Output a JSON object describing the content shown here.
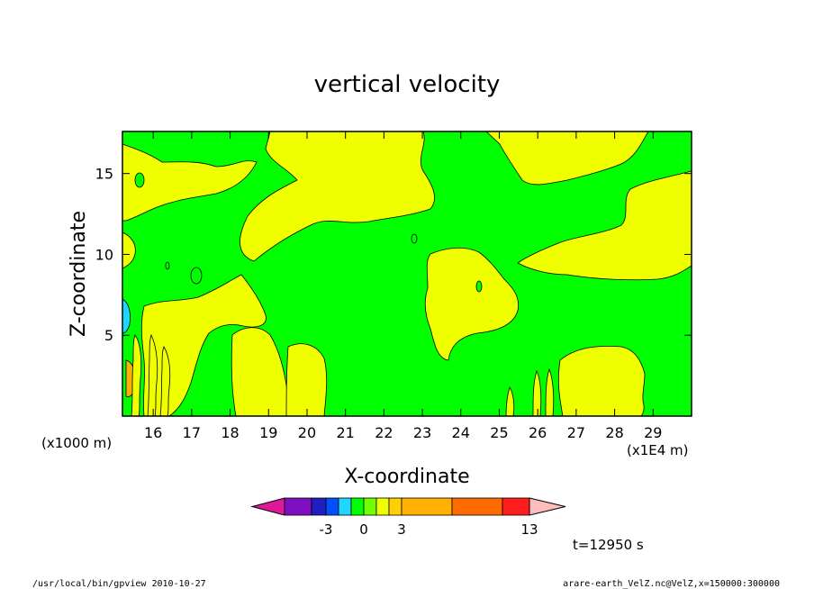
{
  "chart_data": {
    "type": "contour",
    "title": "vertical velocity",
    "xlabel": "X-coordinate",
    "ylabel": "Z-coordinate",
    "x_unit_note": "(x1E4 m)",
    "y_unit_note": "(x1000 m)",
    "xlim": [
      15.2,
      30.0
    ],
    "ylim": [
      0.0,
      17.6
    ],
    "x_ticks": [
      "16",
      "17",
      "18",
      "19",
      "20",
      "21",
      "22",
      "23",
      "24",
      "25",
      "26",
      "27",
      "28",
      "29"
    ],
    "y_ticks": [
      "5",
      "10",
      "15"
    ],
    "colorbar": {
      "colors": [
        "#e0199a",
        "#7d0fbf",
        "#1f1fbf",
        "#0050ff",
        "#1fd6ff",
        "#00ff00",
        "#70ff00",
        "#f0ff00",
        "#ffd000",
        "#ffb000",
        "#ff6a00",
        "#ff1e1e",
        "#ff7b7b",
        "#ffbcbc"
      ],
      "tick_labels": [
        "-3",
        "0",
        "3",
        "13"
      ]
    },
    "time_label": "t=12950 s",
    "regions_note": "green: near-zero (|w| small), yellow: weak positive"
  },
  "footer": {
    "left": "/usr/local/bin/gpview   2010-10-27",
    "right": "arare-earth_VelZ.nc@VelZ,x=150000:300000"
  }
}
